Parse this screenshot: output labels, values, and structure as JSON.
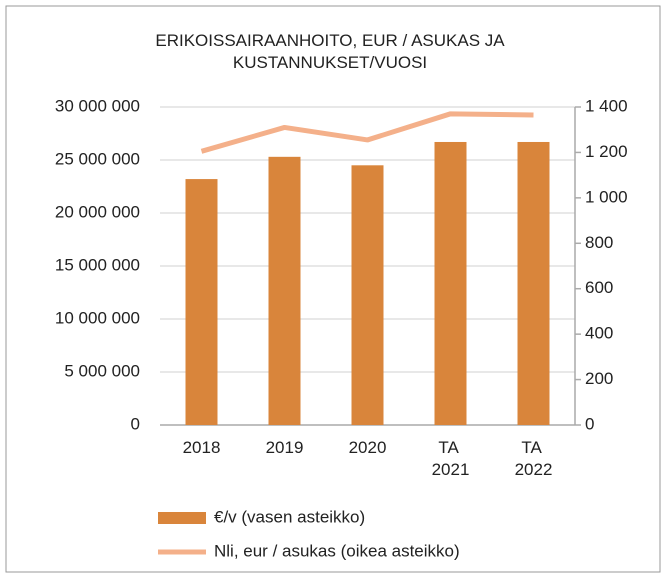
{
  "chart_data": {
    "type": "bar_line",
    "title": "ERIKOISSAIRAANHOITO,  EUR / ASUKAS JA KUSTANNUKSET/VUOSI",
    "categories": [
      "2018",
      "2019",
      "2020",
      "TA 2021",
      "TA 2022"
    ],
    "series": [
      {
        "name": "€/v (vasen asteikko)",
        "type": "bar",
        "color": "#d9853b",
        "values": [
          23200000,
          25300000,
          24500000,
          26700000,
          26700000
        ]
      },
      {
        "name": "Nli, eur / asukas (oikea asteikko)",
        "type": "line",
        "axis": "y2",
        "color": "#f4b08a",
        "values": [
          1205,
          1310,
          1255,
          1370,
          1365
        ]
      }
    ],
    "ylim": [
      0,
      30000000
    ],
    "yticks": [
      0,
      {
        "value": 5000000,
        "label": "5 000 000"
      },
      {
        "value": 10000000,
        "label": "10 000 000"
      },
      {
        "value": 15000000,
        "label": "15 000 000"
      },
      {
        "value": 20000000,
        "label": "20 000 000"
      },
      {
        "value": 25000000,
        "label": "25 000 000"
      },
      {
        "value": 30000000,
        "label": "30 000 000"
      }
    ],
    "y2lim": [
      0,
      1400
    ],
    "y2ticks": [
      0,
      200,
      400,
      600,
      800,
      {
        "value": 1000,
        "label": "1 000"
      },
      {
        "value": 1200,
        "label": "1 200"
      },
      {
        "value": 1400,
        "label": "1 400"
      }
    ],
    "grid": true,
    "legend": "bottom"
  }
}
